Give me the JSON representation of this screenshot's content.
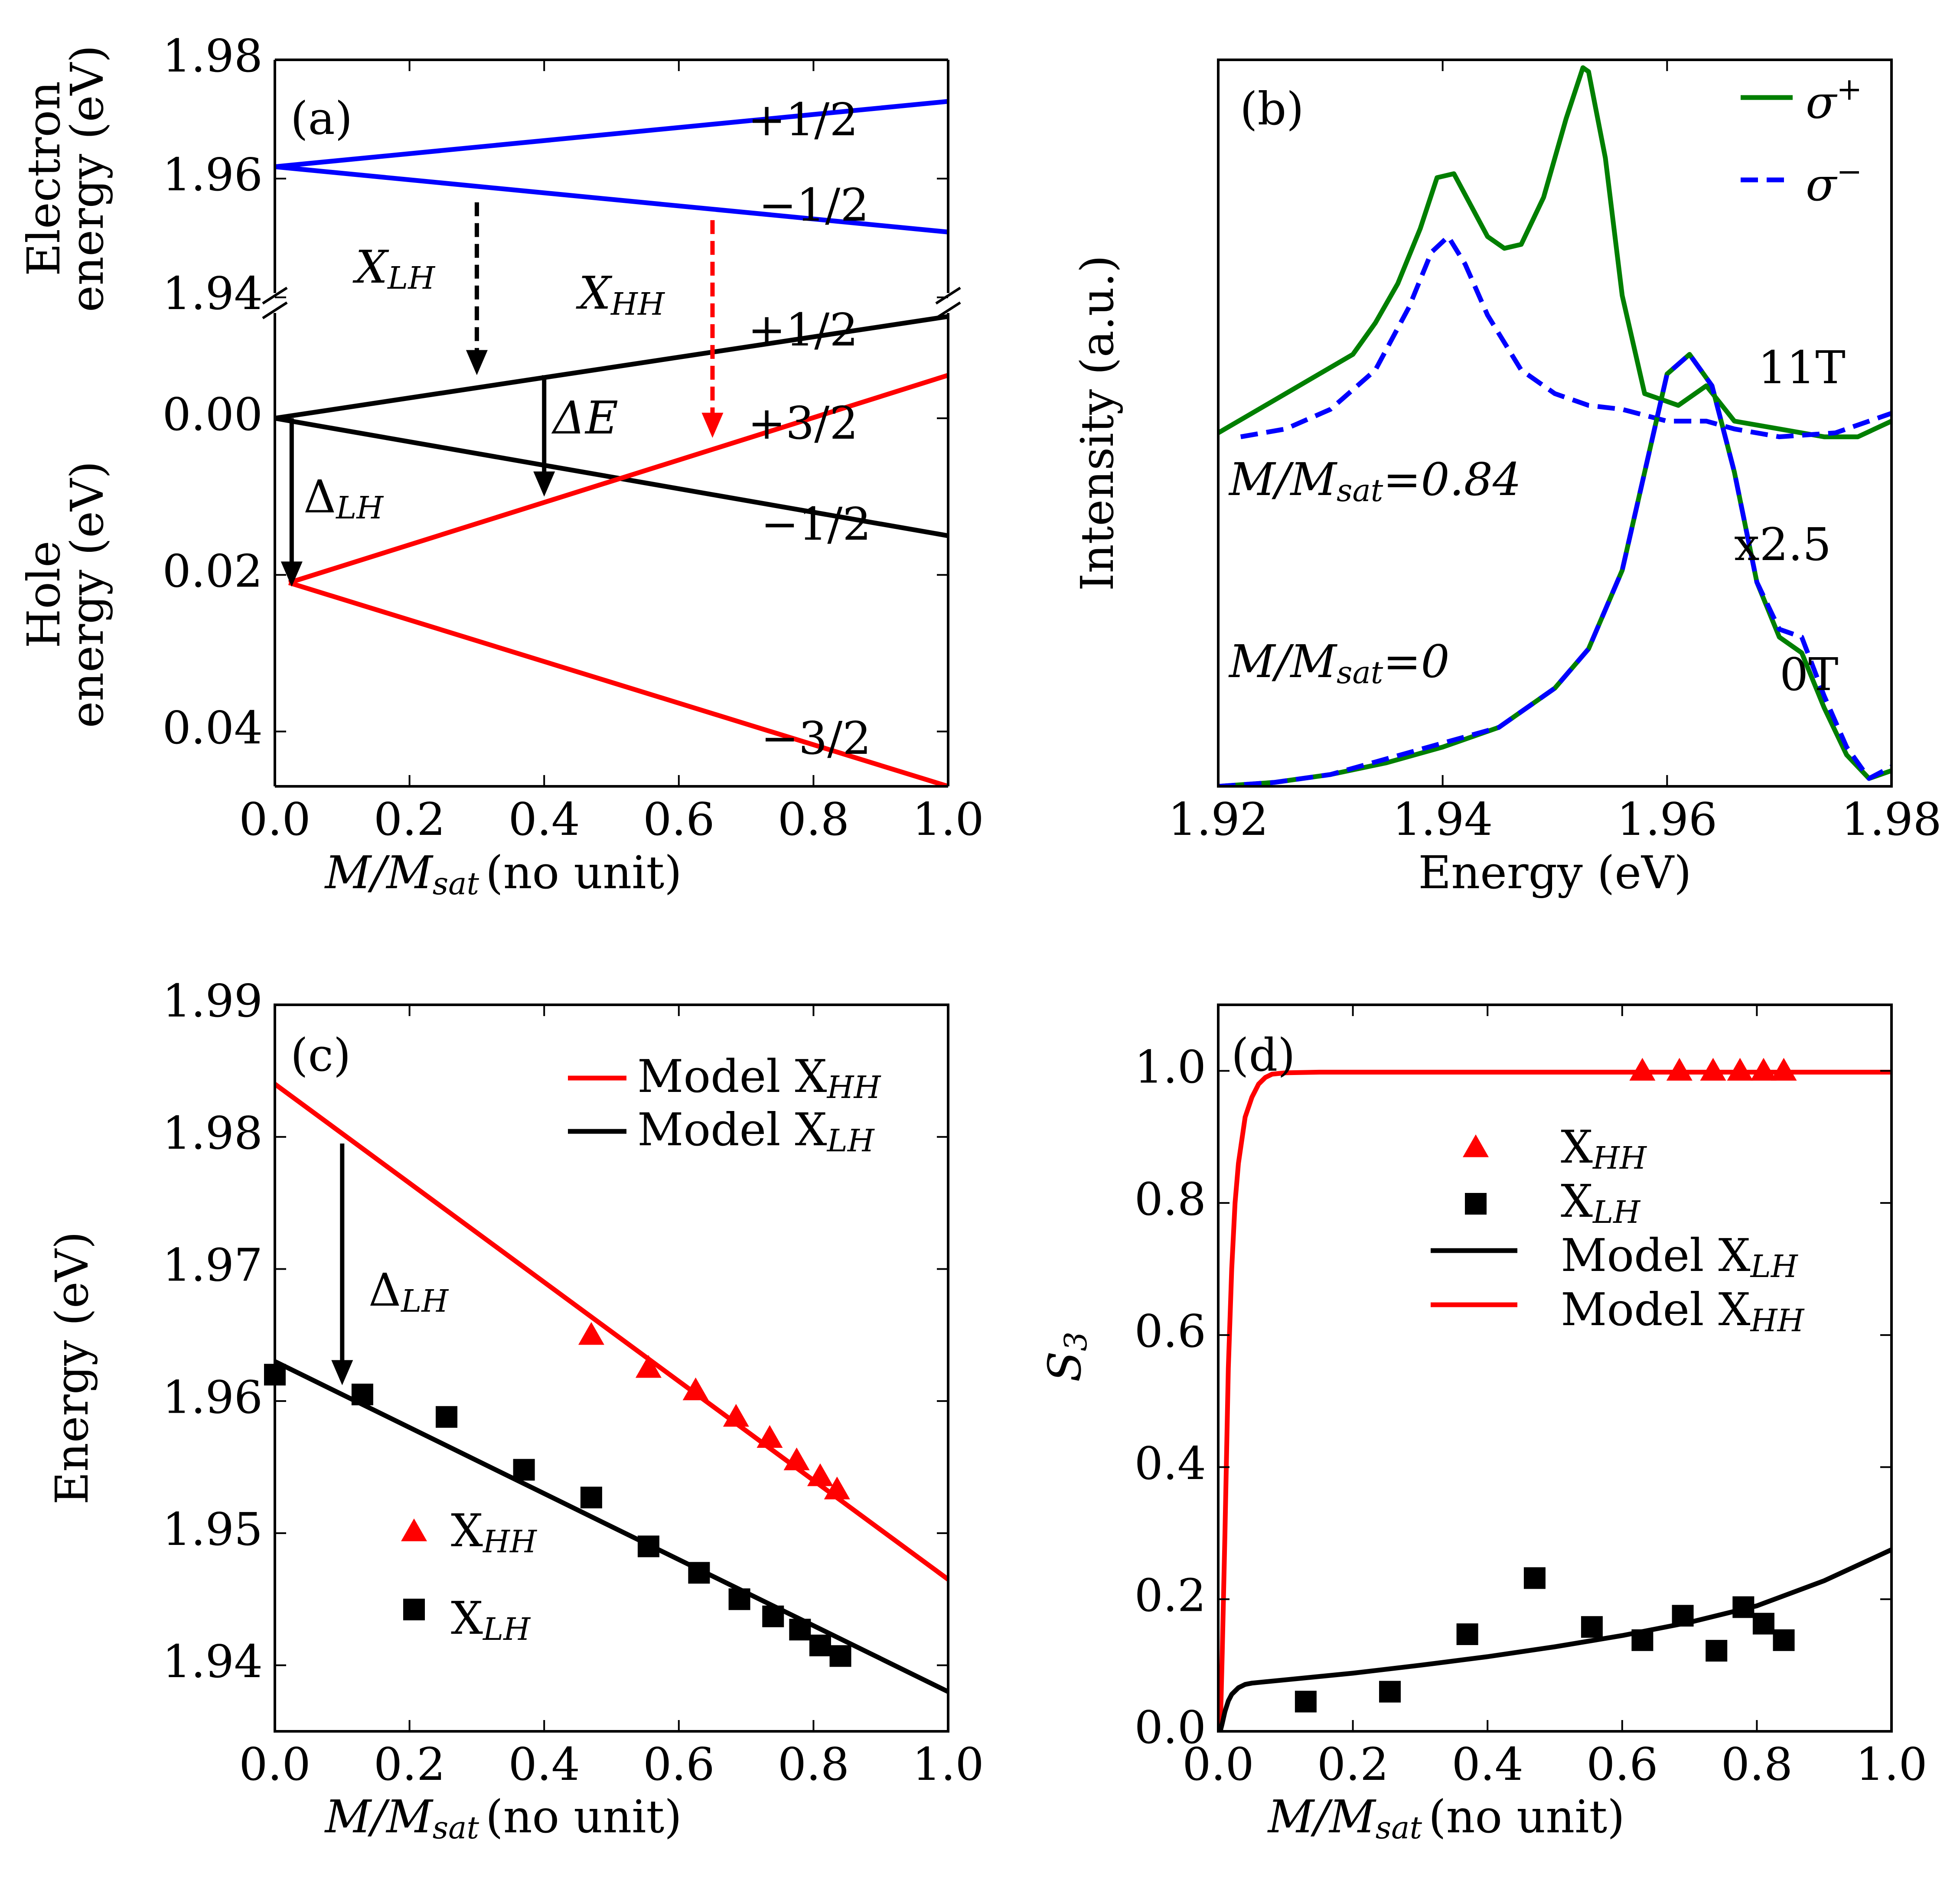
{
  "colors": {
    "blue": "#0000ff",
    "red": "#ff0000",
    "green": "#007f00",
    "black": "#000000"
  },
  "chart_data": [
    {
      "panel_label": "(a)",
      "type": "line",
      "xlabel": "(no unit)",
      "xlabel_math": {
        "base": "M/M",
        "sub": "sat"
      },
      "xlim": [
        0,
        1
      ],
      "x_ticks": [
        "0.0",
        "0.2",
        "0.4",
        "0.6",
        "0.8",
        "1.0"
      ],
      "top": {
        "ylabel": [
          "Electron",
          "energy (eV)"
        ],
        "ylim": [
          1.94,
          1.98
        ],
        "y_ticks": [
          "1.94",
          "1.96",
          "1.98"
        ],
        "series": [
          {
            "name": "+1/2",
            "color": "blue",
            "x": [
              0,
              1
            ],
            "y": [
              1.962,
              1.973
            ]
          },
          {
            "name": "−1/2",
            "color": "blue",
            "x": [
              0,
              1
            ],
            "y": [
              1.962,
              1.951
            ]
          }
        ]
      },
      "bottom": {
        "ylabel": [
          "Hole",
          "energy (eV)"
        ],
        "ylim": [
          -0.014,
          0.047
        ],
        "inverted": true,
        "y_ticks": [
          "0.00",
          "0.02",
          "0.04"
        ],
        "series": [
          {
            "name": "+1/2",
            "color": "black",
            "x": [
              0,
              1
            ],
            "y": [
              0,
              -0.013
            ]
          },
          {
            "name": "−1/2",
            "color": "black",
            "x": [
              0,
              1
            ],
            "y": [
              0,
              0.015
            ]
          },
          {
            "name": "+3/2",
            "color": "red",
            "x": [
              0.021,
              1
            ],
            "y": [
              0.021,
              -0.0055
            ]
          },
          {
            "name": "−3/2",
            "color": "red",
            "x": [
              0.021,
              1
            ],
            "y": [
              0.021,
              0.047
            ]
          }
        ]
      },
      "annotations": [
        {
          "text": "X",
          "sub": "LH",
          "color": "black",
          "x": 0.3,
          "from": 1.956,
          "to": -0.0055
        },
        {
          "text": "X",
          "sub": "HH",
          "color": "red",
          "x": 0.65,
          "from": 1.953,
          "to": 0.0025
        },
        {
          "text": "ΔE",
          "x": 0.4,
          "from": -0.0055,
          "to": 0.01
        },
        {
          "text": "Δ",
          "sub": "LH",
          "x": 0.025,
          "from": 0,
          "to": 0.0215
        }
      ]
    },
    {
      "panel_label": "(b)",
      "type": "line",
      "xlabel": "Energy (eV)",
      "ylabel": "Intensity (a.u.)",
      "xlim": [
        1.92,
        1.98
      ],
      "x_ticks": [
        "1.92",
        "1.94",
        "1.96",
        "1.98"
      ],
      "ylim": [
        0,
        1.85
      ],
      "legend": [
        {
          "label": "σ",
          "sup": "+",
          "color": "green",
          "dash": "solid"
        },
        {
          "label": "σ",
          "sup": "−",
          "color": "blue",
          "dash": "dashdot"
        }
      ],
      "text_labels": [
        "11T",
        "x2.5",
        "0T"
      ],
      "math_labels": [
        {
          "base": "M/M",
          "sub": "sat",
          "value": "=0.84"
        },
        {
          "base": "M/M",
          "sub": "sat",
          "value": "=0"
        }
      ],
      "series": [
        {
          "name": "11T σ+",
          "color": "green",
          "dash": "solid",
          "x": [
            1.92,
            1.923,
            1.926,
            1.929,
            1.932,
            1.934,
            1.936,
            1.938,
            1.9395,
            1.941,
            1.9425,
            1.944,
            1.9455,
            1.947,
            1.949,
            1.951,
            1.9525,
            1.953,
            1.9545,
            1.956,
            1.958,
            1.961,
            1.9635,
            1.966,
            1.97,
            1.974,
            1.977,
            1.98
          ],
          "y": [
            0.9,
            0.95,
            1.0,
            1.05,
            1.1,
            1.18,
            1.28,
            1.42,
            1.55,
            1.56,
            1.48,
            1.4,
            1.37,
            1.38,
            1.5,
            1.7,
            1.83,
            1.82,
            1.6,
            1.25,
            1.0,
            0.97,
            1.02,
            0.93,
            0.91,
            0.89,
            0.89,
            0.93
          ]
        },
        {
          "name": "11T σ−",
          "color": "blue",
          "dash": "dashdot",
          "x": [
            1.922,
            1.926,
            1.93,
            1.934,
            1.937,
            1.939,
            1.9405,
            1.942,
            1.944,
            1.947,
            1.95,
            1.953,
            1.956,
            1.96,
            1.9635,
            1.966,
            1.97,
            1.975,
            1.98
          ],
          "y": [
            0.89,
            0.91,
            0.96,
            1.06,
            1.22,
            1.36,
            1.4,
            1.33,
            1.2,
            1.06,
            1.0,
            0.97,
            0.96,
            0.93,
            0.93,
            0.91,
            0.89,
            0.9,
            0.95
          ]
        },
        {
          "name": "0T σ+",
          "color": "green",
          "dash": "solid",
          "x": [
            1.92,
            1.925,
            1.93,
            1.935,
            1.94,
            1.945,
            1.95,
            1.953,
            1.956,
            1.958,
            1.96,
            1.962,
            1.964,
            1.966,
            1.968,
            1.97,
            1.972,
            1.974,
            1.976,
            1.978,
            1.98
          ],
          "y": [
            0.0,
            0.01,
            0.03,
            0.06,
            0.1,
            0.15,
            0.25,
            0.35,
            0.55,
            0.8,
            1.05,
            1.1,
            1.02,
            0.8,
            0.52,
            0.38,
            0.34,
            0.2,
            0.08,
            0.02,
            0.04
          ]
        },
        {
          "name": "0T σ−",
          "color": "blue",
          "dash": "dashdot",
          "x": [
            1.92,
            1.925,
            1.93,
            1.935,
            1.94,
            1.945,
            1.95,
            1.953,
            1.956,
            1.958,
            1.96,
            1.962,
            1.964,
            1.966,
            1.968,
            1.97,
            1.972,
            1.974,
            1.976,
            1.978,
            1.98
          ],
          "y": [
            0.0,
            0.01,
            0.03,
            0.07,
            0.11,
            0.15,
            0.25,
            0.35,
            0.55,
            0.8,
            1.05,
            1.1,
            1.02,
            0.8,
            0.52,
            0.4,
            0.38,
            0.23,
            0.1,
            0.02,
            0.05
          ]
        }
      ]
    },
    {
      "panel_label": "(c)",
      "type": "line+scatter",
      "ylabel": "Energy (eV)",
      "xlabel": "(no unit)",
      "xlabel_math": {
        "base": "M/M",
        "sub": "sat"
      },
      "xlim": [
        0,
        1
      ],
      "ylim": [
        1.935,
        1.99
      ],
      "x_ticks": [
        "0.0",
        "0.2",
        "0.4",
        "0.6",
        "0.8",
        "1.0"
      ],
      "y_ticks": [
        "1.94",
        "1.95",
        "1.96",
        "1.97",
        "1.98",
        "1.99"
      ],
      "legend_lines": [
        {
          "label": "Model X",
          "sub": "HH",
          "color": "red"
        },
        {
          "label": "Model X",
          "sub": "LH",
          "color": "black"
        }
      ],
      "legend_points": [
        {
          "label": "X",
          "sub": "HH",
          "color": "red",
          "marker": "triangle"
        },
        {
          "label": "X",
          "sub": "LH",
          "color": "black",
          "marker": "square"
        }
      ],
      "annotations": [
        {
          "text": "Δ",
          "sub": "LH",
          "x": 0.1,
          "from": 1.9795,
          "to": 1.9612
        }
      ],
      "series": [
        {
          "name": "Model X_HH",
          "kind": "line",
          "color": "red",
          "x": [
            0,
            1
          ],
          "y": [
            1.984,
            1.9465
          ]
        },
        {
          "name": "Model X_LH",
          "kind": "line",
          "color": "black",
          "x": [
            0,
            1
          ],
          "y": [
            1.963,
            1.938
          ]
        },
        {
          "name": "X_HH",
          "kind": "scatter",
          "marker": "triangle",
          "color": "red",
          "x": [
            0.47,
            0.555,
            0.625,
            0.685,
            0.735,
            0.775,
            0.81,
            0.835
          ],
          "y": [
            1.965,
            1.9625,
            1.9608,
            1.9588,
            1.9572,
            1.9555,
            1.9543,
            1.9533
          ]
        },
        {
          "name": "X_LH",
          "kind": "scatter",
          "marker": "square",
          "color": "black",
          "x": [
            0.0,
            0.13,
            0.255,
            0.37,
            0.47,
            0.555,
            0.63,
            0.69,
            0.74,
            0.78,
            0.81,
            0.84
          ],
          "y": [
            1.962,
            1.9605,
            1.9588,
            1.9548,
            1.9527,
            1.949,
            1.947,
            1.945,
            1.9437,
            1.9427,
            1.9415,
            1.9407
          ]
        }
      ]
    },
    {
      "panel_label": "(d)",
      "type": "line+scatter",
      "ylabel": "S",
      "ylabel_sub": "3",
      "xlabel": "(no unit)",
      "xlabel_math": {
        "base": "M/M",
        "sub": "sat"
      },
      "xlim": [
        0,
        1
      ],
      "ylim": [
        0,
        1.1
      ],
      "x_ticks": [
        "0.0",
        "0.2",
        "0.4",
        "0.6",
        "0.8",
        "1.0"
      ],
      "y_ticks": [
        "0.0",
        "0.2",
        "0.4",
        "0.6",
        "0.8",
        "1.0"
      ],
      "legend": [
        {
          "label": "X",
          "sub": "HH",
          "color": "red",
          "marker": "triangle"
        },
        {
          "label": "X",
          "sub": "LH",
          "color": "black",
          "marker": "square"
        },
        {
          "label": "Model X",
          "sub": "LH",
          "color": "black",
          "marker": "line"
        },
        {
          "label": "Model X",
          "sub": "HH",
          "color": "red",
          "marker": "line"
        }
      ],
      "series": [
        {
          "name": "Model X_HH",
          "kind": "line",
          "color": "red",
          "x": [
            0.003,
            0.006,
            0.01,
            0.015,
            0.02,
            0.025,
            0.03,
            0.04,
            0.05,
            0.06,
            0.07,
            0.08,
            0.1,
            0.15,
            0.3,
            0.6,
            1.0
          ],
          "y": [
            0.0,
            0.12,
            0.3,
            0.55,
            0.7,
            0.8,
            0.86,
            0.93,
            0.96,
            0.98,
            0.99,
            0.995,
            0.997,
            0.998,
            0.998,
            0.998,
            0.998
          ]
        },
        {
          "name": "Model X_LH",
          "kind": "line",
          "color": "black",
          "x": [
            0.003,
            0.006,
            0.01,
            0.015,
            0.02,
            0.03,
            0.04,
            0.05,
            0.07,
            0.1,
            0.2,
            0.3,
            0.4,
            0.5,
            0.6,
            0.7,
            0.8,
            0.9,
            1.0
          ],
          "y": [
            0.0,
            0.012,
            0.03,
            0.046,
            0.056,
            0.066,
            0.071,
            0.073,
            0.075,
            0.078,
            0.088,
            0.1,
            0.113,
            0.128,
            0.145,
            0.165,
            0.19,
            0.228,
            0.275
          ]
        },
        {
          "name": "X_HH",
          "kind": "scatter",
          "marker": "triangle",
          "color": "red",
          "x": [
            0.63,
            0.685,
            0.735,
            0.775,
            0.81,
            0.84
          ],
          "y": [
            1.0,
            1.0,
            1.0,
            1.0,
            1.0,
            1.0
          ]
        },
        {
          "name": "X_LH",
          "kind": "scatter",
          "marker": "square",
          "color": "black",
          "x": [
            0.13,
            0.255,
            0.37,
            0.47,
            0.555,
            0.63,
            0.69,
            0.74,
            0.78,
            0.81,
            0.84
          ],
          "y": [
            0.045,
            0.06,
            0.147,
            0.232,
            0.158,
            0.138,
            0.175,
            0.122,
            0.188,
            0.163,
            0.138
          ]
        }
      ]
    }
  ]
}
